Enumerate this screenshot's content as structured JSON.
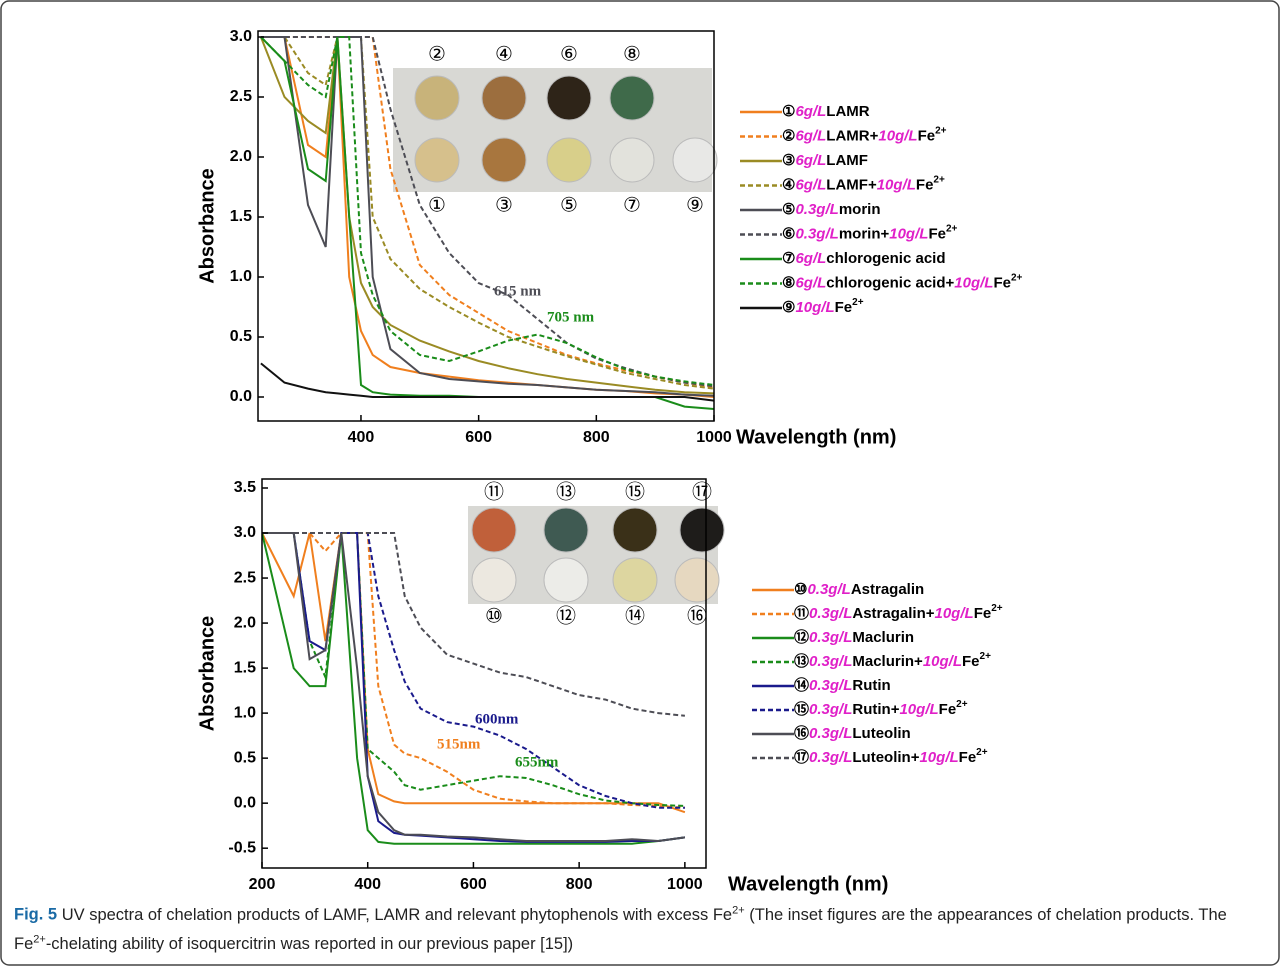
{
  "chart_data": [
    {
      "type": "line",
      "xlabel": "Wavelength (nm)",
      "ylabel": "Absorbance",
      "xlim": [
        225,
        1000
      ],
      "ylim": [
        -0.2,
        3.05
      ],
      "xticks": [
        400,
        600,
        800,
        1000
      ],
      "yticks": [
        {
          "value": 0,
          "label": "0.0"
        },
        0.5,
        {
          "value": 1,
          "label": "1.0"
        },
        1.5,
        {
          "value": 2,
          "label": "2.0"
        },
        2.5,
        {
          "value": 3,
          "label": "3.0"
        }
      ],
      "x": [
        230,
        270,
        310,
        340,
        360,
        380,
        400,
        420,
        450,
        500,
        550,
        600,
        650,
        700,
        750,
        800,
        850,
        900,
        950,
        1000
      ],
      "series": [
        {
          "name": "①6g/LLAMR",
          "color": "#f07f1e",
          "dashed": false,
          "values": [
            3.0,
            3.0,
            2.1,
            2.0,
            3.0,
            1.0,
            0.55,
            0.35,
            0.25,
            0.2,
            0.17,
            0.14,
            0.12,
            0.1,
            0.08,
            0.06,
            0.05,
            0.03,
            0.02,
            0.0
          ]
        },
        {
          "name": "②6g/LLAMR+10g/LFe2+",
          "color": "#f07f1e",
          "dashed": true,
          "values": [
            3.0,
            3.0,
            3.0,
            3.0,
            3.0,
            3.0,
            3.0,
            3.0,
            1.9,
            1.1,
            0.85,
            0.7,
            0.55,
            0.45,
            0.35,
            0.28,
            0.22,
            0.17,
            0.12,
            0.08
          ]
        },
        {
          "name": "③6g/LLAMF",
          "color": "#9a8b24",
          "dashed": false,
          "values": [
            3.0,
            2.5,
            2.3,
            2.2,
            3.0,
            1.5,
            0.95,
            0.75,
            0.6,
            0.47,
            0.38,
            0.3,
            0.24,
            0.19,
            0.15,
            0.12,
            0.09,
            0.06,
            0.04,
            0.03
          ]
        },
        {
          "name": "④6g/LLAMF+10g/LFe2+",
          "color": "#9a8b24",
          "dashed": true,
          "values": [
            3.0,
            3.0,
            2.7,
            2.6,
            3.0,
            3.0,
            3.0,
            1.5,
            1.15,
            0.9,
            0.75,
            0.62,
            0.5,
            0.42,
            0.34,
            0.27,
            0.2,
            0.15,
            0.1,
            0.07
          ]
        },
        {
          "name": "⑤0.3g/Lmorin",
          "color": "#4d4d55",
          "dashed": false,
          "values": [
            3.0,
            3.0,
            1.6,
            1.25,
            3.0,
            3.0,
            3.0,
            1.0,
            0.4,
            0.2,
            0.15,
            0.13,
            0.11,
            0.1,
            0.08,
            0.06,
            0.05,
            0.04,
            0.02,
            0.01
          ]
        },
        {
          "name": "⑥0.3g/Lmorin+10g/LFe2+",
          "color": "#4d4d55",
          "dashed": true,
          "values": [
            3.0,
            3.0,
            3.0,
            3.0,
            3.0,
            3.0,
            3.0,
            3.0,
            2.4,
            1.6,
            1.2,
            0.95,
            0.85,
            0.65,
            0.45,
            0.32,
            0.24,
            0.17,
            0.12,
            0.09
          ]
        },
        {
          "name": "⑦6g/Lchlorogenic acid",
          "color": "#1a8c1a",
          "dashed": false,
          "values": [
            3.0,
            2.8,
            1.9,
            1.8,
            3.0,
            1.5,
            0.1,
            0.04,
            0.02,
            0.01,
            0.01,
            0.0,
            0.0,
            0.0,
            0.0,
            0.0,
            0.0,
            0.0,
            -0.08,
            -0.1
          ]
        },
        {
          "name": "⑧6g/Lchlorogenic acid+10g/LFe2+",
          "color": "#1a8c1a",
          "dashed": true,
          "values": [
            3.0,
            2.8,
            2.6,
            2.5,
            3.0,
            3.0,
            1.2,
            0.85,
            0.55,
            0.35,
            0.3,
            0.38,
            0.47,
            0.52,
            0.45,
            0.33,
            0.23,
            0.17,
            0.13,
            0.1
          ]
        },
        {
          "name": "⑨10g/LFe2+",
          "color": "#111111",
          "dashed": false,
          "values": [
            0.28,
            0.12,
            0.07,
            0.04,
            0.03,
            0.02,
            0.01,
            0.0,
            0.0,
            0.0,
            0.0,
            0.0,
            0.0,
            0.0,
            0.0,
            0.0,
            0.0,
            0.0,
            0.0,
            -0.03
          ]
        }
      ],
      "annotations": [
        {
          "text": "615 nm",
          "color": "#4d4d55"
        },
        {
          "text": "705 nm",
          "color": "#1a8c1a"
        }
      ],
      "inset_labels": {
        "top": [
          "②",
          "④",
          "⑥",
          "⑧"
        ],
        "bottom": [
          "①",
          "③",
          "⑤",
          "⑦",
          "⑨"
        ]
      }
    },
    {
      "type": "line",
      "xlabel": "Wavelength (nm)",
      "ylabel": "Absorbance",
      "xlim": [
        200,
        1040
      ],
      "ylim": [
        -0.72,
        3.6
      ],
      "xticks": [
        200,
        400,
        600,
        800,
        1000
      ],
      "yticks": [
        -0.5,
        {
          "value": 0,
          "label": "0.0"
        },
        0.5,
        {
          "value": 1,
          "label": "1.0"
        },
        1.5,
        {
          "value": 2,
          "label": "2.0"
        },
        2.5,
        {
          "value": 3,
          "label": "3.0"
        },
        3.5
      ],
      "x": [
        200,
        260,
        290,
        320,
        350,
        380,
        400,
        420,
        450,
        470,
        500,
        550,
        600,
        650,
        700,
        750,
        800,
        850,
        900,
        950,
        1000
      ],
      "series": [
        {
          "name": "⑩0.3g/LAstragalin",
          "color": "#f07f1e",
          "dashed": false,
          "values": [
            3.0,
            2.3,
            3.0,
            1.8,
            3.0,
            3.0,
            0.6,
            0.1,
            0.02,
            0.0,
            0.0,
            0.0,
            0.0,
            0.0,
            0.0,
            0.0,
            0.0,
            0.0,
            0.0,
            0.0,
            -0.1
          ]
        },
        {
          "name": "⑪0.3g/LAstragalin+10g/LFe2+",
          "color": "#f07f1e",
          "dashed": true,
          "values": [
            3.0,
            3.0,
            3.0,
            2.8,
            3.0,
            3.0,
            3.0,
            1.3,
            0.65,
            0.55,
            0.5,
            0.35,
            0.15,
            0.05,
            0.02,
            0.0,
            0.0,
            0.0,
            -0.02,
            -0.03,
            -0.05
          ]
        },
        {
          "name": "⑫0.3g/LMaclurin",
          "color": "#1a8c1a",
          "dashed": false,
          "values": [
            3.0,
            1.5,
            1.3,
            1.3,
            3.0,
            0.5,
            -0.3,
            -0.43,
            -0.45,
            -0.45,
            -0.45,
            -0.45,
            -0.45,
            -0.45,
            -0.45,
            -0.45,
            -0.45,
            -0.45,
            -0.45,
            -0.42,
            -0.38
          ]
        },
        {
          "name": "⑬0.3g/LMaclurin+10g/LFe2+",
          "color": "#1a8c1a",
          "dashed": true,
          "values": [
            3.0,
            3.0,
            1.8,
            1.4,
            3.0,
            3.0,
            0.6,
            0.5,
            0.35,
            0.2,
            0.15,
            0.2,
            0.25,
            0.3,
            0.28,
            0.2,
            0.1,
            0.03,
            0.0,
            -0.02,
            -0.03
          ]
        },
        {
          "name": "⑭0.3g/LRutin",
          "color": "#1a1a8c",
          "dashed": false,
          "values": [
            3.0,
            3.0,
            1.8,
            1.7,
            3.0,
            3.0,
            0.3,
            -0.2,
            -0.33,
            -0.35,
            -0.36,
            -0.38,
            -0.4,
            -0.42,
            -0.43,
            -0.43,
            -0.43,
            -0.43,
            -0.42,
            -0.42,
            -0.38
          ]
        },
        {
          "name": "⑮0.3g/LRutin+10g/LFe2+",
          "color": "#1a1a8c",
          "dashed": true,
          "values": [
            3.0,
            3.0,
            3.0,
            3.0,
            3.0,
            3.0,
            3.0,
            2.3,
            1.7,
            1.35,
            1.05,
            0.9,
            0.85,
            0.75,
            0.6,
            0.4,
            0.2,
            0.08,
            0.0,
            -0.05,
            -0.05
          ]
        },
        {
          "name": "⑯0.3g/LLuteolin",
          "color": "#4d4d55",
          "dashed": false,
          "values": [
            3.0,
            3.0,
            1.6,
            1.7,
            3.0,
            1.5,
            0.3,
            -0.1,
            -0.3,
            -0.35,
            -0.35,
            -0.37,
            -0.38,
            -0.4,
            -0.42,
            -0.42,
            -0.42,
            -0.42,
            -0.4,
            -0.42,
            -0.38
          ]
        },
        {
          "name": "⑰0.3g/LLuteolin+10g/LFe2+",
          "color": "#4d4d55",
          "dashed": true,
          "values": [
            3.0,
            3.0,
            3.0,
            3.0,
            3.0,
            3.0,
            3.0,
            3.0,
            3.0,
            2.3,
            1.95,
            1.65,
            1.55,
            1.45,
            1.4,
            1.3,
            1.2,
            1.15,
            1.05,
            1.0,
            0.97
          ]
        }
      ],
      "annotations": [
        {
          "text": "600nm",
          "color": "#1a1a8c"
        },
        {
          "text": "515nm",
          "color": "#f07f1e"
        },
        {
          "text": "655nm",
          "color": "#1a8c1a"
        }
      ],
      "inset_labels": {
        "top": [
          "⑪",
          "⑬",
          "⑮",
          "⑰"
        ],
        "bottom": [
          "⑩",
          "⑫",
          "⑭",
          "⑯"
        ]
      }
    }
  ],
  "caption": {
    "label": "Fig. 5",
    "text": "UV spectra of chelation products of LAMF, LAMR and relevant phytophenols with excess Fe2+ (The inset figures are the appearances of chelation products. The Fe2+-chelating ability of isoquercitrin was reported in our previous paper [15])"
  }
}
